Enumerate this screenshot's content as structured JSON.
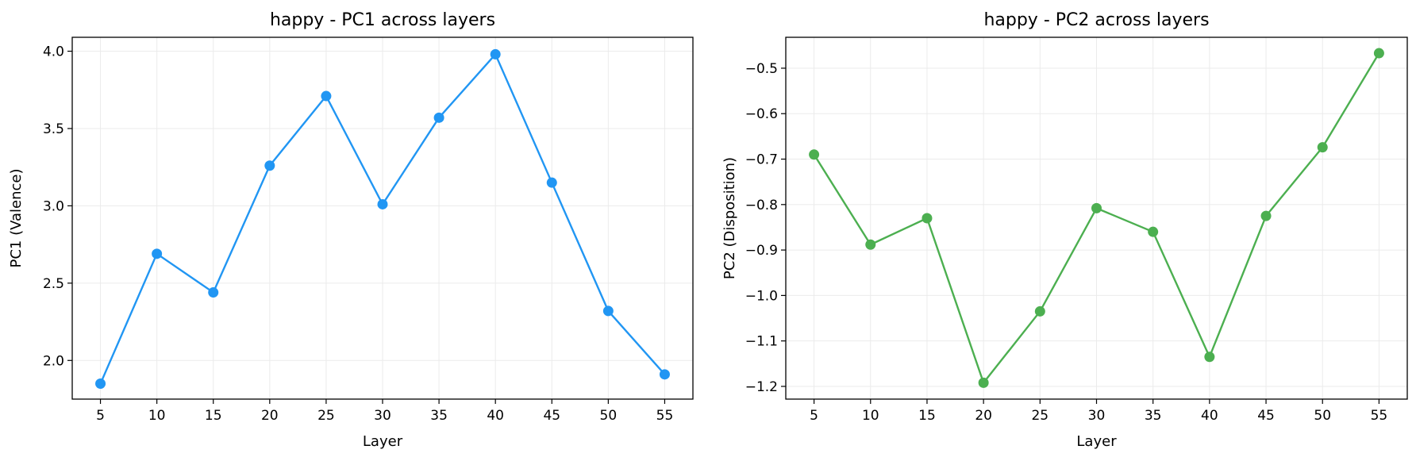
{
  "chart_data": [
    {
      "type": "line",
      "title": "happy - PC1 across layers",
      "xlabel": "Layer",
      "ylabel": "PC1 (Valence)",
      "x": [
        5,
        10,
        15,
        20,
        25,
        30,
        35,
        40,
        45,
        50,
        55
      ],
      "xticks": [
        "5",
        "10",
        "15",
        "20",
        "25",
        "30",
        "35",
        "40",
        "45",
        "50",
        "55"
      ],
      "series": [
        {
          "values": [
            1.85,
            2.69,
            2.44,
            3.26,
            3.71,
            3.01,
            3.57,
            3.98,
            3.15,
            2.32,
            1.91
          ],
          "color": "#2196f3",
          "marker": "circle"
        }
      ],
      "xlim": [
        2.5,
        57.5
      ],
      "ylim": [
        1.75,
        4.09
      ],
      "yticks": [
        2.0,
        2.5,
        3.0,
        3.5,
        4.0
      ],
      "ytick_labels": [
        "2.0",
        "2.5",
        "3.0",
        "3.5",
        "4.0"
      ],
      "grid": true
    },
    {
      "type": "line",
      "title": "happy - PC2 across layers",
      "xlabel": "Layer",
      "ylabel": "PC2 (Disposition)",
      "x": [
        5,
        10,
        15,
        20,
        25,
        30,
        35,
        40,
        45,
        50,
        55
      ],
      "xticks": [
        "5",
        "10",
        "15",
        "20",
        "25",
        "30",
        "35",
        "40",
        "45",
        "50",
        "55"
      ],
      "series": [
        {
          "values": [
            -0.69,
            -0.888,
            -0.83,
            -1.192,
            -1.035,
            -0.808,
            -0.86,
            -1.135,
            -0.825,
            -0.674,
            -0.467
          ],
          "color": "#4caf50",
          "marker": "circle"
        }
      ],
      "xlim": [
        2.5,
        57.5
      ],
      "ylim": [
        -1.228,
        -0.432
      ],
      "yticks": [
        -1.2,
        -1.1,
        -1.0,
        -0.9,
        -0.8,
        -0.7,
        -0.6,
        -0.5
      ],
      "ytick_labels": [
        "−1.2",
        "−1.1",
        "−1.0",
        "−0.9",
        "−0.8",
        "−0.7",
        "−0.6",
        "−0.5"
      ],
      "grid": true
    }
  ]
}
